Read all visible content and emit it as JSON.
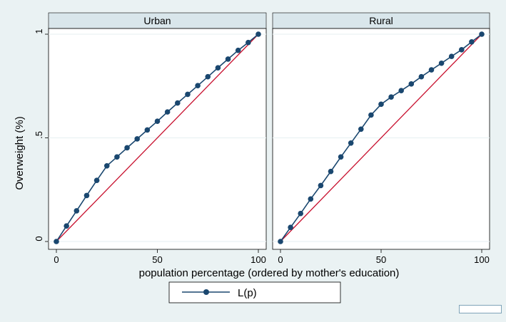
{
  "chart_data": {
    "type": "line",
    "panels": [
      {
        "title": "Urban",
        "series": [
          {
            "name": "L(p)",
            "x": [
              0,
              5,
              10,
              15,
              20,
              25,
              30,
              35,
              40,
              45,
              50,
              55,
              60,
              65,
              70,
              75,
              80,
              85,
              90,
              95,
              100
            ],
            "y": [
              0,
              0.075,
              0.148,
              0.222,
              0.295,
              0.365,
              0.408,
              0.452,
              0.495,
              0.538,
              0.58,
              0.625,
              0.668,
              0.71,
              0.752,
              0.795,
              0.838,
              0.88,
              0.922,
              0.96,
              1.0
            ]
          }
        ],
        "reference": {
          "x": [
            0,
            100
          ],
          "y": [
            0,
            1
          ]
        }
      },
      {
        "title": "Rural",
        "series": [
          {
            "name": "L(p)",
            "x": [
              0,
              5,
              10,
              15,
              20,
              25,
              30,
              35,
              40,
              45,
              50,
              55,
              60,
              65,
              70,
              75,
              80,
              85,
              90,
              95,
              100
            ],
            "y": [
              0,
              0.068,
              0.135,
              0.205,
              0.27,
              0.338,
              0.408,
              0.475,
              0.542,
              0.61,
              0.662,
              0.697,
              0.728,
              0.76,
              0.795,
              0.828,
              0.86,
              0.893,
              0.925,
              0.963,
              1.0
            ]
          }
        ],
        "reference": {
          "x": [
            0,
            100
          ],
          "y": [
            0,
            1
          ]
        }
      }
    ],
    "xlabel": "population percentage (ordered by mother's education)",
    "ylabel": "Overweight (%)",
    "xlim": [
      0,
      100
    ],
    "ylim": [
      0,
      1
    ],
    "xticks": [
      0,
      50,
      100
    ],
    "xtick_labels": [
      "0",
      "50",
      "100"
    ],
    "yticks": [
      0,
      0.5,
      1
    ],
    "ytick_labels": [
      "0",
      ".5",
      "1"
    ],
    "grid": "horizontal",
    "legend": {
      "entries": [
        "L(p)"
      ],
      "placement": "bottom"
    },
    "colors": {
      "series": "#1a476f",
      "reference": "#c8102e",
      "background": "#eaf2f3",
      "panel_header": "#d9e6eb",
      "grid": "#eaf2f3"
    }
  }
}
